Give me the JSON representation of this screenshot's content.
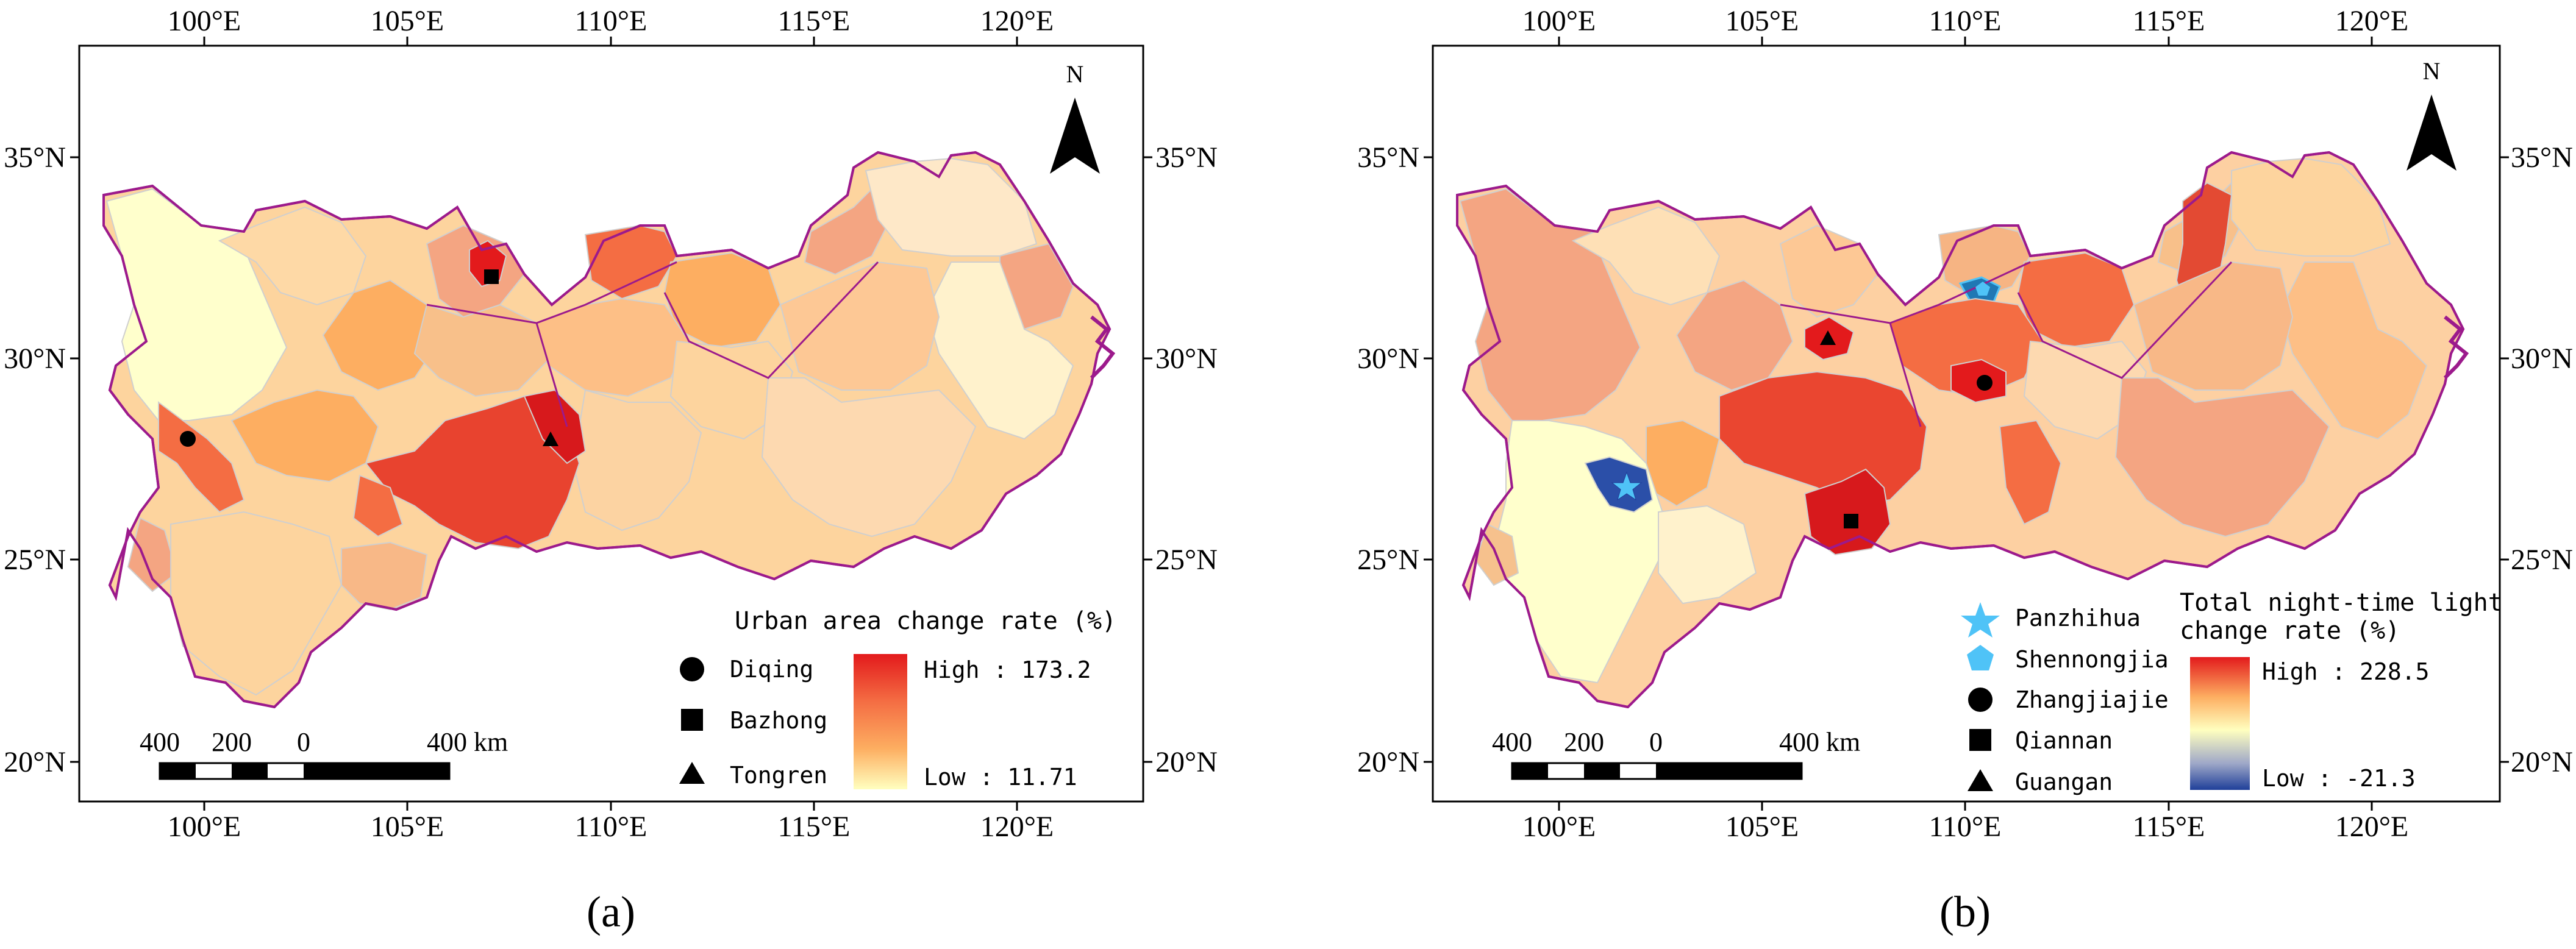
{
  "figure": {
    "panels": [
      {
        "id": "a",
        "label": "(a)",
        "north_label": "N",
        "lon_ticks": [
          "100°E",
          "105°E",
          "110°E",
          "115°E",
          "120°E"
        ],
        "lat_ticks": [
          "35°N",
          "30°N",
          "25°N",
          "20°N"
        ],
        "scale_bar": {
          "labels": [
            "400",
            "200",
            "0",
            "400 km"
          ]
        },
        "legend": {
          "title": "Urban area change rate (%)",
          "high": "High : 173.2",
          "low": "Low : 11.71",
          "colors": [
            "#e31a1c",
            "#f46d43",
            "#fdae61",
            "#ffffbf"
          ],
          "markers": [
            {
              "shape": "circle",
              "name": "Diqing"
            },
            {
              "shape": "square",
              "name": "Bazhong"
            },
            {
              "shape": "triangle",
              "name": "Tongren"
            }
          ]
        }
      },
      {
        "id": "b",
        "label": "(b)",
        "north_label": "N",
        "lon_ticks": [
          "100°E",
          "105°E",
          "110°E",
          "115°E",
          "120°E"
        ],
        "lat_ticks": [
          "35°N",
          "30°N",
          "25°N",
          "20°N"
        ],
        "scale_bar": {
          "labels": [
            "400",
            "200",
            "0",
            "400 km"
          ]
        },
        "legend": {
          "title_line1": "Total night-time light",
          "title_line2": "change rate (%)",
          "high": "High : 228.5",
          "low": "Low : -21.3",
          "colors": [
            "#e31a1c",
            "#fdae61",
            "#ffffbf",
            "#4575b4",
            "#1f3f99"
          ],
          "markers": [
            {
              "shape": "star",
              "name": "Panzhihua",
              "color": "#4fc3f7"
            },
            {
              "shape": "pentagon",
              "name": "Shennongjia",
              "color": "#4fc3f7"
            },
            {
              "shape": "circle",
              "name": "Zhangjiajie",
              "color": "#000000"
            },
            {
              "shape": "square",
              "name": "Qiannan",
              "color": "#000000"
            },
            {
              "shape": "triangle",
              "name": "Guangan",
              "color": "#000000"
            }
          ]
        }
      }
    ],
    "colors": {
      "boundary": "#9c1a8c",
      "internal_border": "#cfcfcf",
      "frame": "#000000"
    }
  }
}
